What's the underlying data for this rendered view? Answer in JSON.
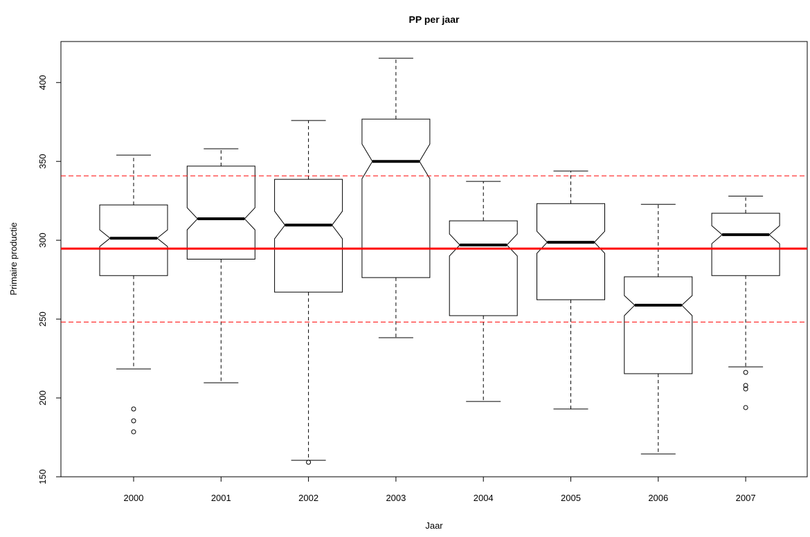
{
  "chart_data": {
    "type": "boxplot",
    "title": "PP per jaar",
    "x_label": "Jaar",
    "y_label": "Primaire productie",
    "categories": [
      "2000",
      "2001",
      "2002",
      "2003",
      "2004",
      "2005",
      "2006",
      "2007"
    ],
    "boxes": [
      {
        "min": 218.4,
        "q1": 277.6,
        "notch_lo": 296,
        "median": 301.3,
        "notch_hi": 306.6,
        "q3": 322.4,
        "max": 354,
        "outliers": [
          193,
          185.5,
          178.5
        ]
      },
      {
        "min": 209.6,
        "q1": 288,
        "notch_lo": 306.6,
        "median": 313.6,
        "notch_hi": 320.6,
        "q3": 347,
        "max": 358,
        "outliers": []
      },
      {
        "min": 160.5,
        "q1": 267.1,
        "notch_lo": 300.9,
        "median": 309.6,
        "notch_hi": 318.4,
        "q3": 338.6,
        "max": 375.9,
        "outliers": [
          159.2
        ]
      },
      {
        "min": 238.2,
        "q1": 276.3,
        "notch_lo": 339,
        "median": 350,
        "notch_hi": 361,
        "q3": 376.8,
        "max": 415.4,
        "outliers": []
      },
      {
        "min": 197.8,
        "q1": 252.2,
        "notch_lo": 290,
        "median": 297,
        "notch_hi": 304,
        "q3": 312.3,
        "max": 337.3,
        "outliers": []
      },
      {
        "min": 193,
        "q1": 262.3,
        "notch_lo": 291.7,
        "median": 298.7,
        "notch_hi": 305.7,
        "q3": 323.2,
        "max": 343.9,
        "outliers": []
      },
      {
        "min": 164.5,
        "q1": 215.4,
        "notch_lo": 252.2,
        "median": 258.8,
        "notch_hi": 264.9,
        "q3": 276.8,
        "max": 322.8,
        "outliers": []
      },
      {
        "min": 219.7,
        "q1": 277.6,
        "notch_lo": 297.8,
        "median": 303.5,
        "notch_hi": 309.2,
        "q3": 317.1,
        "max": 328,
        "outliers": [
          216.2,
          207.9,
          205.7,
          193.9
        ]
      }
    ],
    "mean_line": 294.7,
    "band_lines": [
      248.1,
      340.8
    ],
    "line_color": "#ff0000",
    "box_color": "#000000",
    "ylim": [
      150,
      426
    ],
    "yticks": [
      150,
      200,
      250,
      300,
      350,
      400
    ]
  }
}
